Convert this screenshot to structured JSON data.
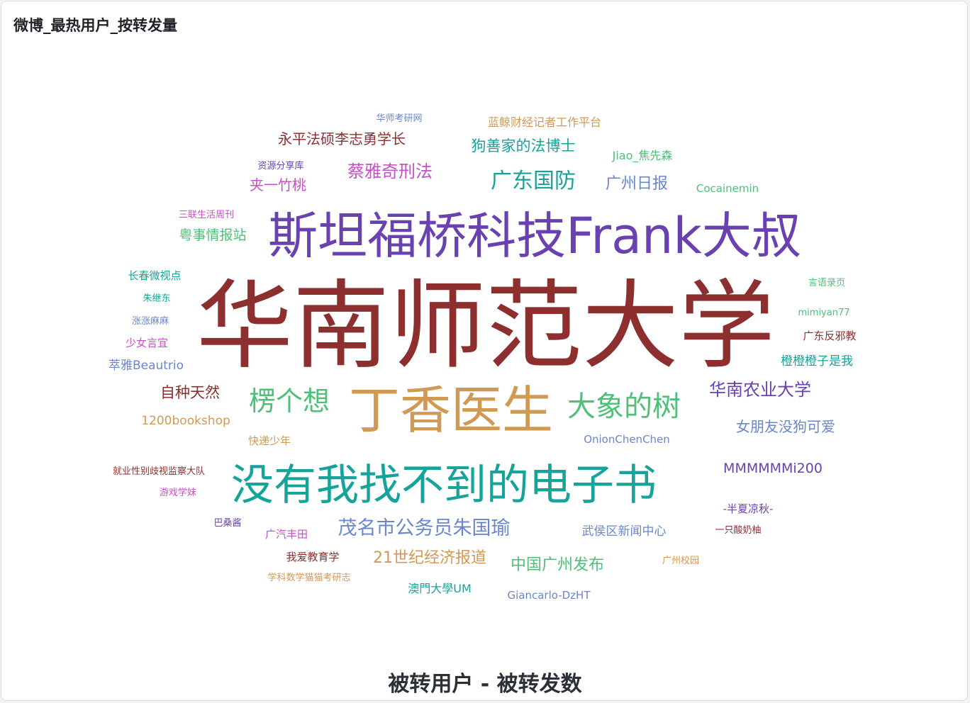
{
  "panel": {
    "title": "微博_最热用户_按转发量",
    "subtitle": "被转用户 - 被转发数"
  },
  "chart_data": {
    "type": "wordcloud",
    "title": "微博_最热用户_按转发量",
    "xlabel": "被转用户",
    "ylabel": "被转发数",
    "palette": [
      "#8e2f2f",
      "#6a41b0",
      "#d09a55",
      "#16a39a",
      "#4fbf7a",
      "#6a86cc",
      "#c552c5"
    ],
    "words": [
      {
        "text": "华南师范大学",
        "rank": 1,
        "color": "#8e2f2f"
      },
      {
        "text": "斯坦福桥科技Frank大叔",
        "rank": 2,
        "color": "#6a41b0"
      },
      {
        "text": "丁香医生",
        "rank": 3,
        "color": "#d09a55"
      },
      {
        "text": "没有我找不到的电子书",
        "rank": 4,
        "color": "#16a39a"
      },
      {
        "text": "大象的树",
        "rank": 5,
        "color": "#4fbf7a"
      },
      {
        "text": "楞个想",
        "rank": 6,
        "color": "#4fbf7a"
      },
      {
        "text": "广东国防",
        "rank": 7,
        "color": "#16a39a"
      },
      {
        "text": "茂名市公务员朱国瑜",
        "rank": 8,
        "color": "#6a86cc"
      },
      {
        "text": "华南农业大学",
        "rank": 9,
        "color": "#6a41b0"
      },
      {
        "text": "蔡雅奇刑法",
        "rank": 10,
        "color": "#c552c5"
      },
      {
        "text": "21世纪经济报道",
        "rank": 11,
        "color": "#d09a55"
      },
      {
        "text": "中国广州发布",
        "rank": 12,
        "color": "#4fbf7a"
      },
      {
        "text": "狗善家的法博士",
        "rank": 13,
        "color": "#16a39a"
      },
      {
        "text": "广州日报",
        "rank": 14,
        "color": "#6a86cc"
      },
      {
        "text": "永平法硕李志勇学长",
        "rank": 15,
        "color": "#8e2f2f"
      },
      {
        "text": "自种天然",
        "rank": 16,
        "color": "#8e2f2f"
      },
      {
        "text": "女朋友没狗可爱",
        "rank": 17,
        "color": "#6a86cc"
      },
      {
        "text": "MMMMMMi200",
        "rank": 18,
        "color": "#6a41b0"
      },
      {
        "text": "夹一竹桃",
        "rank": 19,
        "color": "#c552c5"
      },
      {
        "text": "粤事情报站",
        "rank": 20,
        "color": "#4fbf7a"
      },
      {
        "text": "1200bookshop",
        "rank": 21,
        "color": "#d09a55"
      },
      {
        "text": "武侯区新闻中心",
        "rank": 22,
        "color": "#6a86cc"
      },
      {
        "text": "Jiao_焦先森",
        "rank": 23,
        "color": "#4fbf7a"
      },
      {
        "text": "萃雅Beautrio",
        "rank": 24,
        "color": "#6a86cc"
      },
      {
        "text": "蓝鲸财经记者工作平台",
        "rank": 25,
        "color": "#d09a55"
      },
      {
        "text": "橙橙橙子是我",
        "rank": 26,
        "color": "#16a39a"
      },
      {
        "text": "Cocainemin",
        "rank": 27,
        "color": "#4fbf7a"
      },
      {
        "text": "OnionChenChen",
        "rank": 28,
        "color": "#6a86cc"
      },
      {
        "text": "澳門大學UM",
        "rank": 29,
        "color": "#16a39a"
      },
      {
        "text": "Giancarlo-DzHT",
        "rank": 30,
        "color": "#6a86cc"
      },
      {
        "text": "快递少年",
        "rank": 31,
        "color": "#d09a55"
      },
      {
        "text": "少女言宜",
        "rank": 32,
        "color": "#c552c5"
      },
      {
        "text": "长春微视点",
        "rank": 33,
        "color": "#16a39a"
      },
      {
        "text": "我爱教育学",
        "rank": 34,
        "color": "#8e2f2f"
      },
      {
        "text": "广汽丰田",
        "rank": 35,
        "color": "#c552c5"
      },
      {
        "text": "-半夏凉秋-",
        "rank": 36,
        "color": "#6a41b0"
      },
      {
        "text": "广东反邪教",
        "rank": 37,
        "color": "#8e2f2f"
      },
      {
        "text": "涨涨麻麻",
        "rank": 38,
        "color": "#6a86cc"
      },
      {
        "text": "就业性别歧视监察大队",
        "rank": 39,
        "color": "#8e2f2f"
      },
      {
        "text": "资源分享库",
        "rank": 40,
        "color": "#6a41b0"
      },
      {
        "text": "华师考研网",
        "rank": 41,
        "color": "#6a86cc"
      },
      {
        "text": "三联生活周刊",
        "rank": 42,
        "color": "#c552c5"
      },
      {
        "text": "朱继东",
        "rank": 43,
        "color": "#16a39a"
      },
      {
        "text": "言语录页",
        "rank": 44,
        "color": "#4fbf7a"
      },
      {
        "text": "mimiyan77",
        "rank": 45,
        "color": "#4fbf7a"
      },
      {
        "text": "游戏学妹",
        "rank": 46,
        "color": "#c552c5"
      },
      {
        "text": "巴桑酱",
        "rank": 47,
        "color": "#6a41b0"
      },
      {
        "text": "学科数学猫猫考研志",
        "rank": 48,
        "color": "#d09a55"
      },
      {
        "text": "一只酸奶柚",
        "rank": 49,
        "color": "#8e2f2f"
      },
      {
        "text": "广州校园",
        "rank": 50,
        "color": "#d09a55"
      }
    ]
  }
}
